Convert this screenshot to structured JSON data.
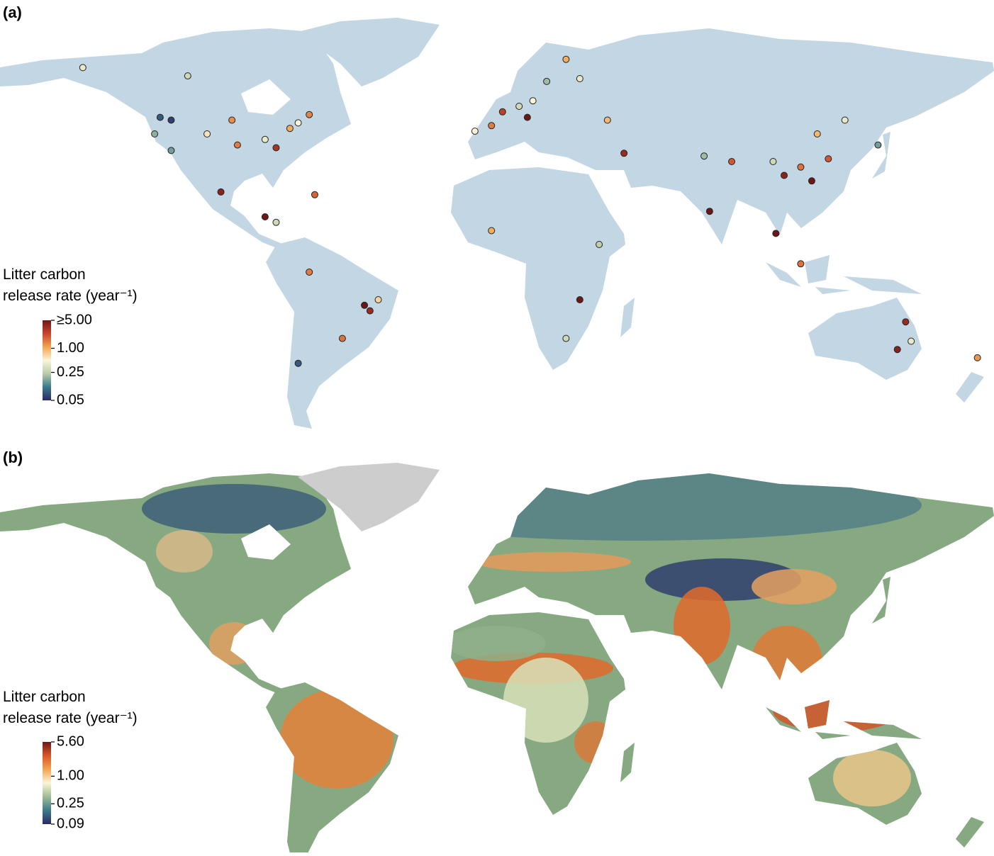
{
  "chart_data": [
    {
      "type": "map",
      "panel_label": "(a)",
      "legend_title": [
        "Litter carbon",
        "release rate (year⁻¹)"
      ],
      "colormap": [
        "#2b2a66",
        "#3c7a8a",
        "#b9cbaa",
        "#fbf4d8",
        "#f2a552",
        "#c8442c",
        "#6e1717"
      ],
      "colorbar_ticks": [
        {
          "value": 5,
          "label": "≥5.00"
        },
        {
          "value": 1,
          "label": "1.00"
        },
        {
          "value": 0.25,
          "label": "0.25"
        },
        {
          "value": 0.05,
          "label": "0.05"
        }
      ],
      "sites": [
        {
          "lon": -150,
          "lat": 64,
          "value": 0.4
        },
        {
          "lon": -112,
          "lat": 61,
          "value": 0.3
        },
        {
          "lon": -122,
          "lat": 46,
          "value": 0.08
        },
        {
          "lon": -118,
          "lat": 45,
          "value": 0.06
        },
        {
          "lon": -124,
          "lat": 40,
          "value": 0.18
        },
        {
          "lon": -118,
          "lat": 34,
          "value": 0.15
        },
        {
          "lon": -105,
          "lat": 40,
          "value": 0.6
        },
        {
          "lon": -96,
          "lat": 45,
          "value": 1.3
        },
        {
          "lon": -94,
          "lat": 36,
          "value": 1.5
        },
        {
          "lon": -84,
          "lat": 38,
          "value": 0.4
        },
        {
          "lon": -80,
          "lat": 35,
          "value": 3.0
        },
        {
          "lon": -75,
          "lat": 42,
          "value": 1.0
        },
        {
          "lon": -72,
          "lat": 44,
          "value": 0.5
        },
        {
          "lon": -68,
          "lat": 47,
          "value": 1.4
        },
        {
          "lon": -100,
          "lat": 19,
          "value": 4.0
        },
        {
          "lon": -84,
          "lat": 10,
          "value": 6.0
        },
        {
          "lon": -80,
          "lat": 8,
          "value": 0.3
        },
        {
          "lon": -66,
          "lat": 18,
          "value": 1.8
        },
        {
          "lon": -68,
          "lat": -10,
          "value": 1.5
        },
        {
          "lon": -48,
          "lat": -22,
          "value": 6.0
        },
        {
          "lon": -46,
          "lat": -24,
          "value": 3.5
        },
        {
          "lon": -43,
          "lat": -20,
          "value": 0.7
        },
        {
          "lon": -56,
          "lat": -34,
          "value": 1.6
        },
        {
          "lon": -72,
          "lat": -43,
          "value": 0.08
        },
        {
          "lon": -8,
          "lat": 41,
          "value": 0.5
        },
        {
          "lon": -2,
          "lat": 43,
          "value": 1.5
        },
        {
          "lon": 2,
          "lat": 48,
          "value": 2.5
        },
        {
          "lon": 8,
          "lat": 50,
          "value": 0.3
        },
        {
          "lon": 11,
          "lat": 46,
          "value": 6.0
        },
        {
          "lon": 13,
          "lat": 52,
          "value": 0.5
        },
        {
          "lon": 18,
          "lat": 59,
          "value": 0.2
        },
        {
          "lon": 25,
          "lat": 67,
          "value": 1.0
        },
        {
          "lon": 30,
          "lat": 60,
          "value": 0.4
        },
        {
          "lon": 40,
          "lat": 45,
          "value": 0.9
        },
        {
          "lon": 46,
          "lat": 33,
          "value": 3.5
        },
        {
          "lon": 75,
          "lat": 32,
          "value": 0.2
        },
        {
          "lon": 77,
          "lat": 12,
          "value": 7.0
        },
        {
          "lon": 85,
          "lat": 30,
          "value": 2.0
        },
        {
          "lon": 100,
          "lat": 30,
          "value": 0.3
        },
        {
          "lon": 104,
          "lat": 25,
          "value": 4.0
        },
        {
          "lon": 110,
          "lat": 28,
          "value": 1.6
        },
        {
          "lon": 114,
          "lat": 23,
          "value": 6.0
        },
        {
          "lon": 116,
          "lat": 40,
          "value": 0.9
        },
        {
          "lon": 120,
          "lat": 31,
          "value": 2.0
        },
        {
          "lon": 126,
          "lat": 45,
          "value": 0.4
        },
        {
          "lon": 138,
          "lat": 36,
          "value": 0.15
        },
        {
          "lon": 101,
          "lat": 4,
          "value": 5.0
        },
        {
          "lon": 110,
          "lat": -7,
          "value": 1.6
        },
        {
          "lon": -2,
          "lat": 5,
          "value": 1.0
        },
        {
          "lon": 37,
          "lat": 0,
          "value": 0.25
        },
        {
          "lon": 30,
          "lat": -20,
          "value": 7.0
        },
        {
          "lon": 25,
          "lat": -34,
          "value": 0.3
        },
        {
          "lon": 148,
          "lat": -28,
          "value": 3.5
        },
        {
          "lon": 150,
          "lat": -35,
          "value": 0.4
        },
        {
          "lon": 145,
          "lat": -38,
          "value": 4.0
        },
        {
          "lon": 174,
          "lat": -41,
          "value": 1.2
        }
      ]
    },
    {
      "type": "map",
      "panel_label": "(b)",
      "legend_title": [
        "Litter carbon",
        "release rate (year⁻¹)"
      ],
      "colormap": [
        "#2b2a66",
        "#3c7a8a",
        "#9fbb95",
        "#fbf4d8",
        "#f2a552",
        "#d8562a",
        "#6e1717"
      ],
      "colorbar_ticks": [
        {
          "value": 5.6,
          "label": "5.60"
        },
        {
          "value": 1,
          "label": "1.00"
        },
        {
          "value": 0.25,
          "label": "0.25"
        },
        {
          "value": 0.09,
          "label": "0.09"
        }
      ]
    }
  ]
}
